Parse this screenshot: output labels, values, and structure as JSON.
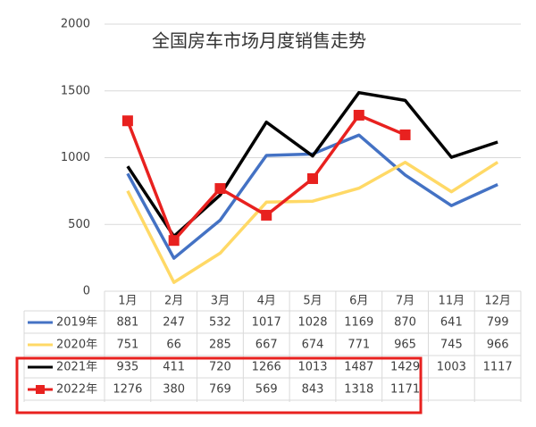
{
  "chart_data": {
    "type": "line",
    "title": "全国房车市场月度销售走势",
    "categories": [
      "1月",
      "2月",
      "3月",
      "4月",
      "5月",
      "6月",
      "7月",
      "11月",
      "12月"
    ],
    "series": [
      {
        "name": "2019年",
        "color": "#4472c4",
        "values": [
          881,
          247,
          532,
          1017,
          1028,
          1169,
          870,
          641,
          799
        ]
      },
      {
        "name": "2020年",
        "color": "#ffd966",
        "values": [
          751,
          66,
          285,
          667,
          674,
          771,
          965,
          745,
          966
        ]
      },
      {
        "name": "2021年",
        "color": "#000000",
        "values": [
          935,
          411,
          720,
          1266,
          1013,
          1487,
          1429,
          1003,
          1117
        ]
      },
      {
        "name": "2022年",
        "color": "#e8211f",
        "marker": "square",
        "values": [
          1276,
          380,
          769,
          569,
          843,
          1318,
          1171,
          null,
          null
        ]
      }
    ],
    "ylim": [
      0,
      2000
    ],
    "yticks": [
      0,
      500,
      1000,
      1500,
      2000
    ],
    "grid": true,
    "data_table": true
  }
}
